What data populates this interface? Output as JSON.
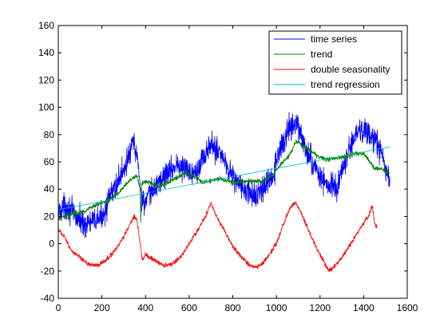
{
  "chart_data": {
    "type": "line",
    "xlim": [
      0,
      1600
    ],
    "ylim": [
      -40,
      160
    ],
    "x_ticks": [
      0,
      200,
      400,
      600,
      800,
      1000,
      1200,
      1400,
      1600
    ],
    "y_ticks": [
      -40,
      -20,
      0,
      20,
      40,
      60,
      80,
      100,
      120,
      140,
      160
    ],
    "x_tick_labels": [
      "0",
      "200",
      "400",
      "600",
      "800",
      "1000",
      "1200",
      "1400",
      "1600"
    ],
    "y_tick_labels": [
      "-40",
      "-20",
      "0",
      "20",
      "40",
      "60",
      "80",
      "100",
      "120",
      "140",
      "160"
    ],
    "grid": false,
    "legend_position": "top-right",
    "series": [
      {
        "name": "time series",
        "color": "#0000ff",
        "x_range": [
          0,
          1520
        ],
        "anchors": [
          [
            0,
            24
          ],
          [
            40,
            28
          ],
          [
            80,
            20
          ],
          [
            120,
            15
          ],
          [
            160,
            16
          ],
          [
            200,
            20
          ],
          [
            240,
            35
          ],
          [
            280,
            48
          ],
          [
            320,
            62
          ],
          [
            345,
            75
          ],
          [
            370,
            55
          ],
          [
            380,
            35
          ],
          [
            400,
            30
          ],
          [
            430,
            38
          ],
          [
            460,
            45
          ],
          [
            500,
            52
          ],
          [
            540,
            58
          ],
          [
            580,
            55
          ],
          [
            620,
            52
          ],
          [
            660,
            62
          ],
          [
            700,
            72
          ],
          [
            740,
            68
          ],
          [
            780,
            55
          ],
          [
            820,
            45
          ],
          [
            860,
            38
          ],
          [
            900,
            35
          ],
          [
            940,
            40
          ],
          [
            980,
            48
          ],
          [
            1020,
            70
          ],
          [
            1060,
            85
          ],
          [
            1090,
            90
          ],
          [
            1120,
            75
          ],
          [
            1160,
            60
          ],
          [
            1200,
            50
          ],
          [
            1240,
            42
          ],
          [
            1280,
            40
          ],
          [
            1300,
            55
          ],
          [
            1340,
            70
          ],
          [
            1380,
            85
          ],
          [
            1420,
            80
          ],
          [
            1450,
            75
          ],
          [
            1480,
            68
          ],
          [
            1500,
            55
          ],
          [
            1520,
            45
          ]
        ],
        "noise": 14
      },
      {
        "name": "trend",
        "color": "#008000",
        "x_range": [
          0,
          1520
        ],
        "anchors": [
          [
            0,
            18
          ],
          [
            60,
            22
          ],
          [
            120,
            24
          ],
          [
            160,
            27
          ],
          [
            200,
            30
          ],
          [
            240,
            33
          ],
          [
            280,
            38
          ],
          [
            320,
            45
          ],
          [
            360,
            50
          ],
          [
            375,
            40
          ],
          [
            378,
            15
          ],
          [
            382,
            45
          ],
          [
            420,
            45
          ],
          [
            460,
            42
          ],
          [
            500,
            45
          ],
          [
            540,
            48
          ],
          [
            580,
            52
          ],
          [
            620,
            50
          ],
          [
            660,
            45
          ],
          [
            700,
            46
          ],
          [
            740,
            48
          ],
          [
            780,
            46
          ],
          [
            820,
            45
          ],
          [
            860,
            46
          ],
          [
            900,
            46
          ],
          [
            940,
            46
          ],
          [
            980,
            50
          ],
          [
            1020,
            58
          ],
          [
            1060,
            65
          ],
          [
            1090,
            75
          ],
          [
            1120,
            72
          ],
          [
            1160,
            68
          ],
          [
            1200,
            63
          ],
          [
            1240,
            62
          ],
          [
            1280,
            63
          ],
          [
            1320,
            64
          ],
          [
            1360,
            66
          ],
          [
            1400,
            66
          ],
          [
            1430,
            60
          ],
          [
            1450,
            55
          ],
          [
            1480,
            55
          ],
          [
            1520,
            52
          ]
        ],
        "noise": 2.5
      },
      {
        "name": "double seasonality",
        "color": "#ff0000",
        "x_range": [
          0,
          1460
        ],
        "anchors": [
          [
            0,
            10
          ],
          [
            30,
            5
          ],
          [
            60,
            -5
          ],
          [
            100,
            -10
          ],
          [
            140,
            -15
          ],
          [
            180,
            -16
          ],
          [
            220,
            -12
          ],
          [
            260,
            -5
          ],
          [
            300,
            5
          ],
          [
            330,
            15
          ],
          [
            350,
            20
          ],
          [
            360,
            18
          ],
          [
            380,
            -5
          ],
          [
            385,
            -12
          ],
          [
            400,
            -8
          ],
          [
            440,
            -12
          ],
          [
            480,
            -16
          ],
          [
            520,
            -15
          ],
          [
            560,
            -10
          ],
          [
            600,
            0
          ],
          [
            640,
            10
          ],
          [
            680,
            22
          ],
          [
            700,
            30
          ],
          [
            720,
            22
          ],
          [
            760,
            10
          ],
          [
            800,
            -2
          ],
          [
            840,
            -10
          ],
          [
            880,
            -16
          ],
          [
            920,
            -17
          ],
          [
            960,
            -10
          ],
          [
            1000,
            0
          ],
          [
            1040,
            18
          ],
          [
            1070,
            28
          ],
          [
            1090,
            30
          ],
          [
            1120,
            20
          ],
          [
            1160,
            5
          ],
          [
            1200,
            -8
          ],
          [
            1240,
            -20
          ],
          [
            1260,
            -18
          ],
          [
            1300,
            -10
          ],
          [
            1340,
            0
          ],
          [
            1380,
            10
          ],
          [
            1420,
            20
          ],
          [
            1440,
            28
          ],
          [
            1450,
            15
          ],
          [
            1460,
            12
          ]
        ],
        "noise": 2.5
      },
      {
        "name": "trend regression",
        "color": "#00bfbf",
        "x_range": [
          0,
          1520
        ],
        "anchors": [
          [
            0,
            25
          ],
          [
            1520,
            71
          ]
        ],
        "noise": 0
      }
    ]
  }
}
